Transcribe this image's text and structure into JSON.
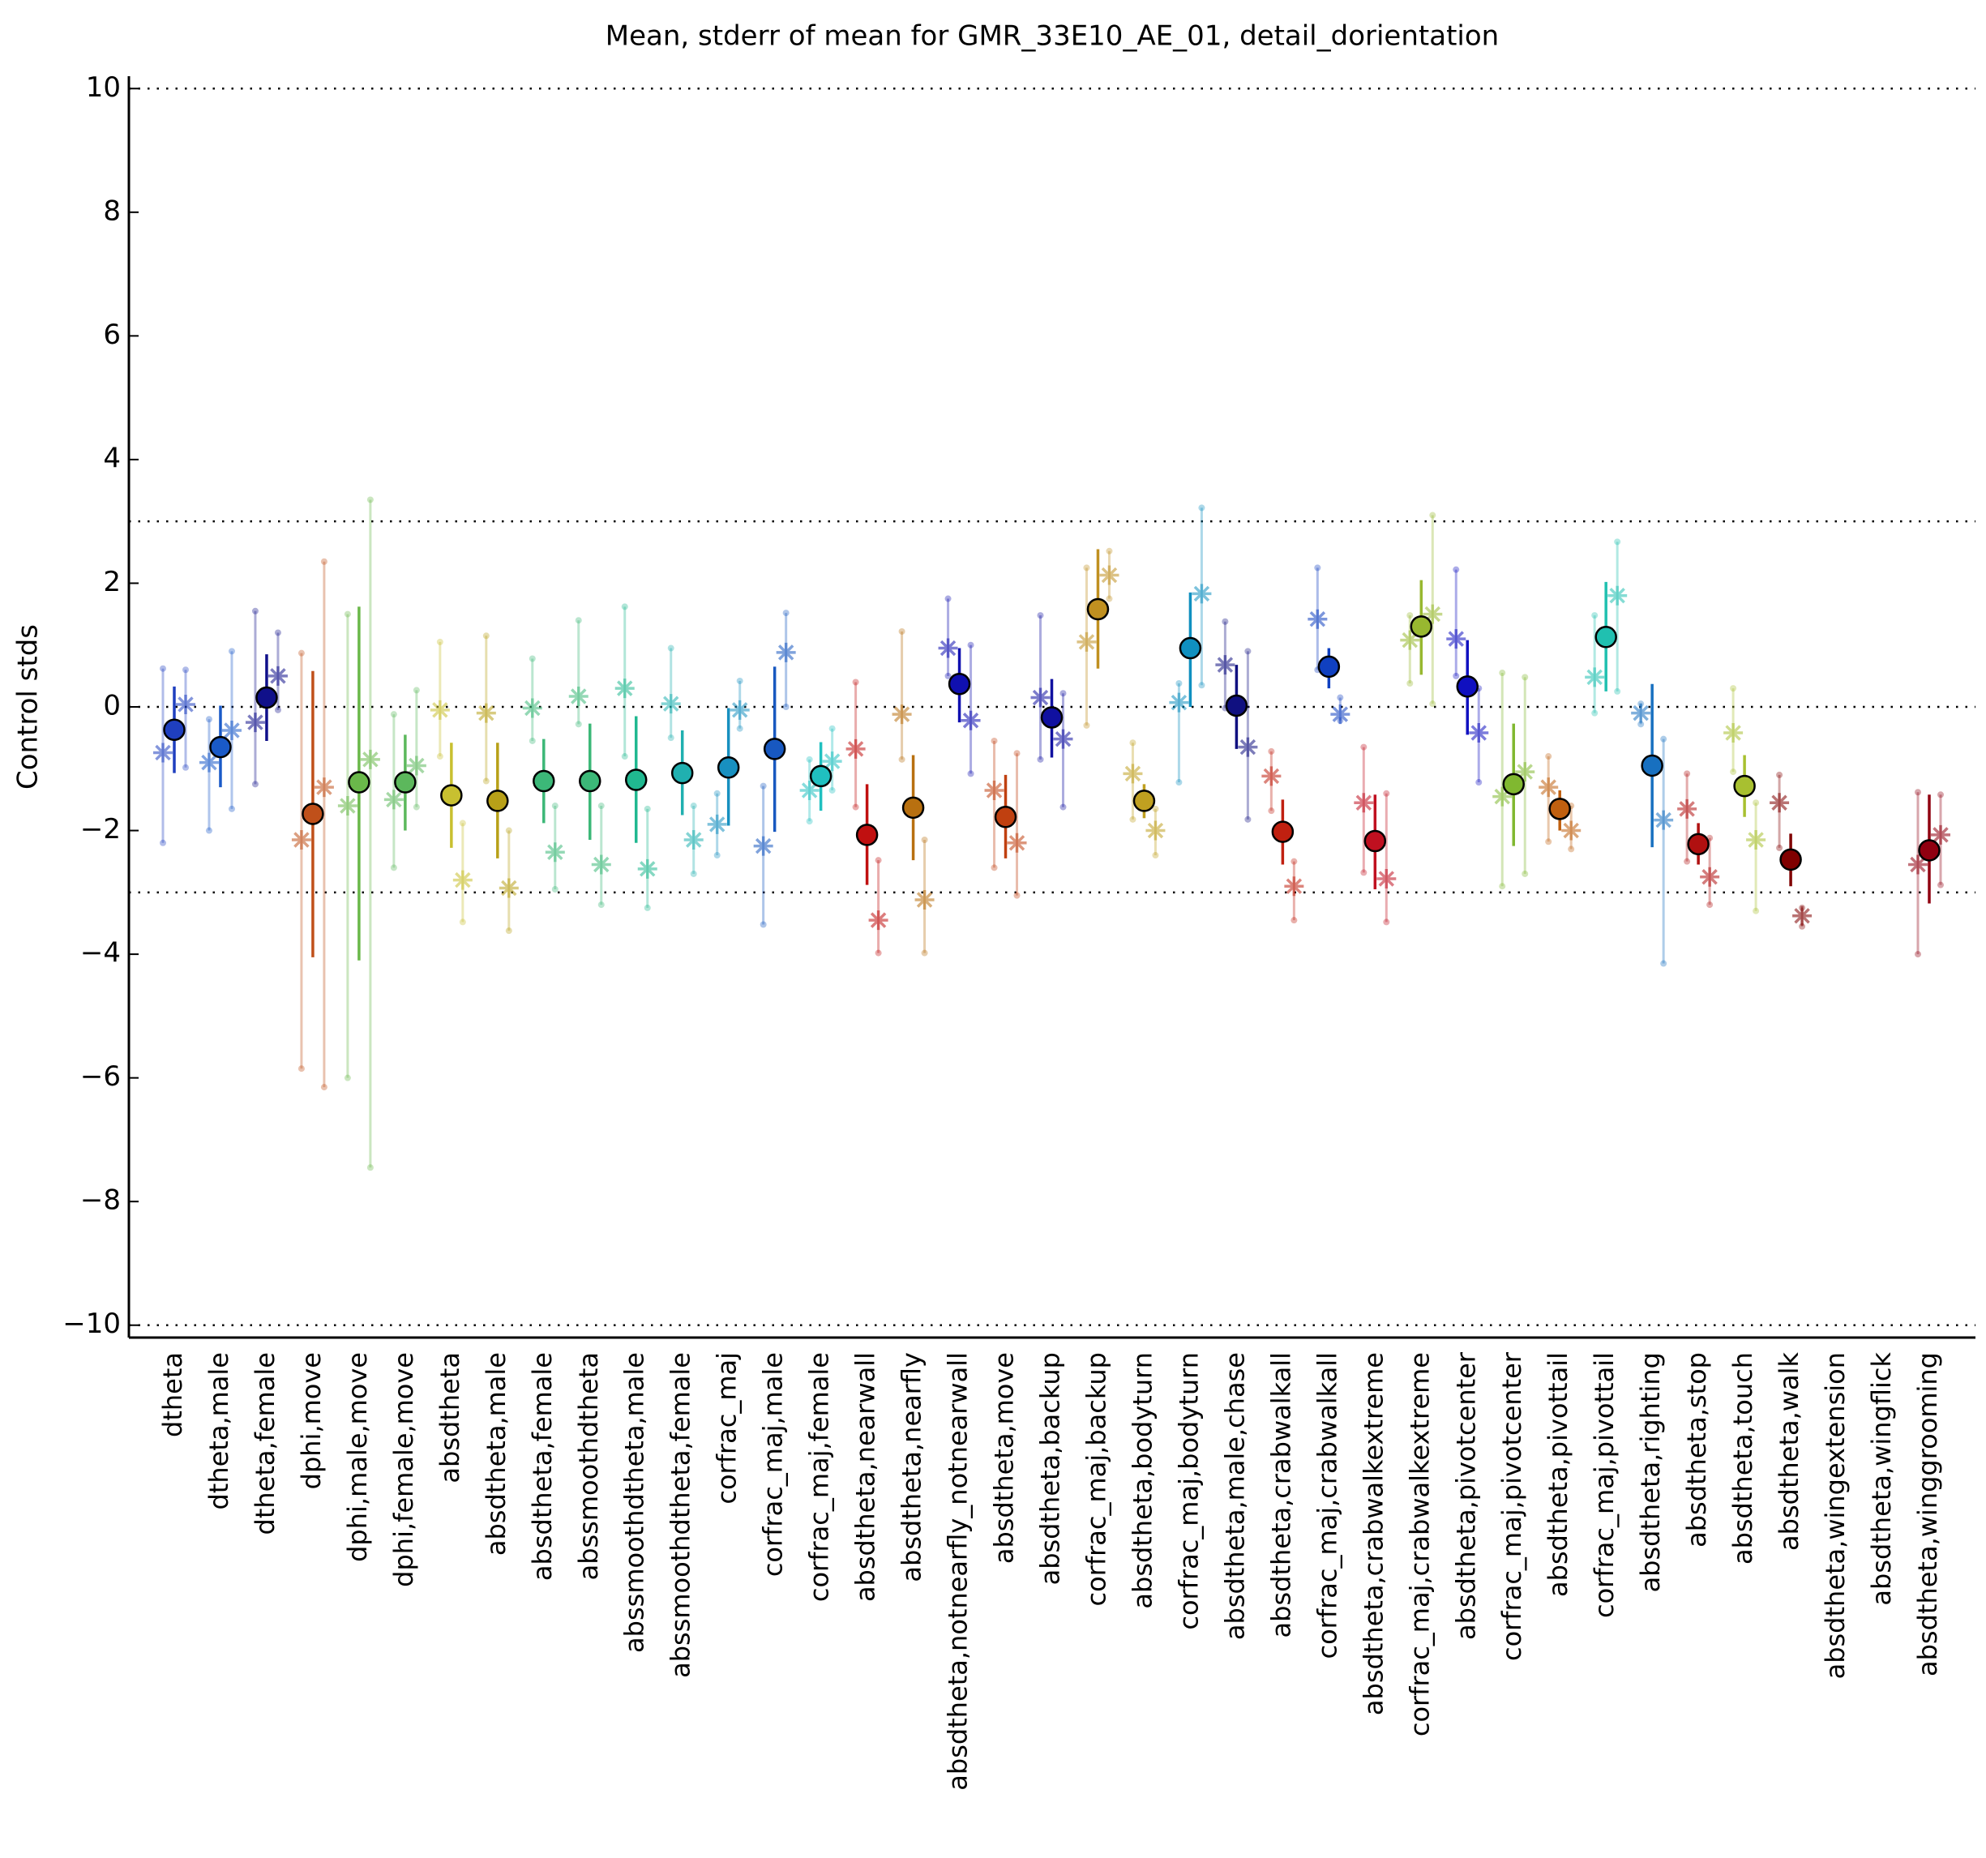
{
  "chart_data": {
    "type": "errorbar",
    "title": "Mean, stderr of mean for GMR_33E10_AE_01, detail_dorientation",
    "ylabel": "Control stds",
    "ylim": [
      -10.2,
      10.2
    ],
    "yticks": [
      {
        "value": -10,
        "label": "−10"
      },
      {
        "value": -8,
        "label": "−8"
      },
      {
        "value": -6,
        "label": "−6"
      },
      {
        "value": -4,
        "label": "−4"
      },
      {
        "value": -2,
        "label": "−2"
      },
      0,
      2,
      4,
      6,
      8,
      10
    ],
    "reference_lines": [
      10,
      3,
      0,
      -3,
      -10
    ],
    "categories": [
      "dtheta",
      "dtheta,male",
      "dtheta,female",
      "dphi,move",
      "dphi,male,move",
      "dphi,female,move",
      "absdtheta",
      "absdtheta,male",
      "absdtheta,female",
      "abssmoothdtheta",
      "abssmoothdtheta,male",
      "abssmoothdtheta,female",
      "corfrac_maj",
      "corfrac_maj,male",
      "corfrac_maj,female",
      "absdtheta,nearwall",
      "absdtheta,nearfly",
      "absdtheta,notnearfly_notnearwall",
      "absdtheta,move",
      "absdtheta,backup",
      "corfrac_maj,backup",
      "absdtheta,bodyturn",
      "corfrac_maj,bodyturn",
      "absdtheta,male,chase",
      "absdtheta,crabwalkall",
      "corfrac_maj,crabwalkall",
      "absdtheta,crabwalkextreme",
      "corfrac_maj,crabwalkextreme",
      "absdtheta,pivotcenter",
      "corfrac_maj,pivotcenter",
      "absdtheta,pivottail",
      "corfrac_maj,pivottail",
      "absdtheta,righting",
      "absdtheta,stop",
      "absdtheta,touch",
      "absdtheta,walk",
      "absdtheta,wingextension",
      "absdtheta,wingflick",
      "absdtheta,winggrooming"
    ],
    "colors": [
      "#1f3fbf",
      "#1a5ac8",
      "#10108a",
      "#c0501a",
      "#6ab84a",
      "#5cb85c",
      "#c8c030",
      "#b8a018",
      "#3cb878",
      "#3cb878",
      "#20b890",
      "#20b0b0",
      "#1890c0",
      "#1858c0",
      "#20c0c0",
      "#c01010",
      "#b87010",
      "#1010b0",
      "#c04010",
      "#1010a0",
      "#c09020",
      "#c0a020",
      "#1090c0",
      "#101080",
      "#c02010",
      "#1040c0",
      "#c01020",
      "#98b830",
      "#1010c0",
      "#80b830",
      "#c06010",
      "#20c0b0",
      "#1870c0",
      "#b01010",
      "#a8c030",
      "#800000",
      "#999999",
      "#999999",
      "#900010"
    ],
    "values": [
      -0.37,
      -0.65,
      0.15,
      -1.73,
      -1.22,
      -1.22,
      -1.43,
      -1.52,
      -1.2,
      -1.2,
      -1.18,
      -1.07,
      -0.98,
      -0.68,
      -1.12,
      -2.07,
      -1.63,
      0.37,
      -1.78,
      -0.17,
      1.58,
      -1.52,
      0.95,
      0.02,
      -2.02,
      0.65,
      -2.17,
      1.3,
      0.33,
      -1.25,
      -1.65,
      1.13,
      -0.95,
      -2.22,
      -1.28,
      -2.47,
      null,
      null,
      -2.32
    ],
    "lows": [
      -1.07,
      -1.3,
      -0.55,
      -4.05,
      -4.1,
      -2.0,
      -2.28,
      -2.45,
      -1.88,
      -2.15,
      -2.2,
      -1.75,
      -1.92,
      -2.02,
      -1.68,
      -2.88,
      -2.48,
      -0.25,
      -2.45,
      -0.82,
      0.62,
      -1.8,
      0.0,
      -0.68,
      -2.55,
      0.3,
      -2.95,
      0.52,
      -0.45,
      -2.25,
      -2.0,
      0.25,
      -2.27,
      -2.55,
      -1.78,
      -2.9,
      null,
      null,
      -3.18
    ],
    "highs": [
      0.33,
      0.02,
      0.85,
      0.58,
      1.62,
      -0.45,
      -0.58,
      -0.58,
      -0.52,
      -0.27,
      -0.15,
      -0.38,
      -0.02,
      0.65,
      -0.57,
      -1.25,
      -0.78,
      0.95,
      -1.1,
      0.45,
      2.55,
      -1.25,
      1.85,
      0.68,
      -1.5,
      0.95,
      -1.42,
      2.05,
      1.08,
      -0.27,
      -1.35,
      2.02,
      0.37,
      -1.88,
      -0.78,
      -2.05,
      null,
      null,
      -1.42
    ],
    "left_values": [
      -0.74,
      -0.9,
      -0.25,
      -2.15,
      -1.6,
      -1.5,
      -0.05,
      -0.1,
      -0.02,
      0.17,
      0.3,
      0.05,
      -1.9,
      -2.25,
      -1.35,
      -0.68,
      -0.12,
      0.95,
      -1.35,
      0.15,
      1.05,
      -1.08,
      0.07,
      0.68,
      -1.12,
      1.42,
      -1.55,
      1.08,
      1.1,
      -1.45,
      -1.3,
      0.48,
      -0.1,
      -1.65,
      -0.42,
      -1.55,
      null,
      null,
      -2.55
    ],
    "left_lows": [
      -2.2,
      -2.0,
      -1.25,
      -5.85,
      -6.0,
      -2.6,
      -0.8,
      -1.2,
      -0.55,
      -0.28,
      -0.8,
      -0.5,
      -2.4,
      -3.52,
      -1.85,
      -1.62,
      -0.85,
      0.5,
      -2.6,
      -0.85,
      -0.3,
      -1.82,
      -1.22,
      -0.02,
      -1.68,
      0.6,
      -2.68,
      0.38,
      0.5,
      -2.9,
      -2.18,
      -0.1,
      -0.28,
      -2.5,
      -1.05,
      -2.28,
      null,
      null,
      -4.0
    ],
    "left_highs": [
      0.62,
      -0.2,
      1.55,
      0.87,
      1.5,
      -0.12,
      1.05,
      1.15,
      0.78,
      1.4,
      1.62,
      0.95,
      -1.4,
      -1.28,
      -0.85,
      0.4,
      1.22,
      1.75,
      -0.55,
      1.48,
      2.25,
      -0.58,
      0.38,
      1.38,
      -0.72,
      2.25,
      -0.65,
      1.48,
      2.22,
      0.55,
      -0.8,
      1.48,
      0.05,
      -1.08,
      0.3,
      -1.1,
      null,
      null,
      -1.38
    ],
    "right_values": [
      0.04,
      -0.38,
      0.5,
      -1.3,
      -0.85,
      -0.95,
      -2.8,
      -2.93,
      -2.35,
      -2.55,
      -2.62,
      -2.15,
      -0.05,
      0.88,
      -0.88,
      -3.45,
      -3.12,
      -0.22,
      -2.2,
      -0.52,
      2.13,
      -2.0,
      1.83,
      -0.65,
      -2.9,
      -0.12,
      -2.78,
      1.5,
      -0.42,
      -1.05,
      -2.0,
      1.8,
      -1.83,
      -2.75,
      -2.15,
      -3.38,
      null,
      null,
      -2.07
    ],
    "right_lows": [
      -0.98,
      -1.65,
      -0.05,
      -6.15,
      -7.45,
      -1.62,
      -3.48,
      -3.62,
      -2.95,
      -3.2,
      -3.25,
      -2.7,
      -0.35,
      0.0,
      -1.35,
      -3.98,
      -3.98,
      -1.08,
      -3.05,
      -1.62,
      1.75,
      -2.4,
      0.35,
      -1.82,
      -3.45,
      -0.22,
      -3.48,
      0.05,
      -1.22,
      -2.7,
      -2.3,
      0.25,
      -4.15,
      -3.2,
      -3.3,
      -3.55,
      null,
      null,
      -2.88
    ],
    "right_highs": [
      0.6,
      0.9,
      1.2,
      2.35,
      3.35,
      0.27,
      -1.88,
      -2.0,
      -1.6,
      -1.6,
      -1.65,
      -1.6,
      0.42,
      1.52,
      -0.35,
      -2.48,
      -2.15,
      1.0,
      -0.75,
      0.22,
      2.52,
      -1.65,
      3.22,
      0.9,
      -2.5,
      0.15,
      -1.4,
      3.1,
      0.3,
      0.48,
      -1.6,
      2.67,
      -0.52,
      -2.12,
      -1.55,
      -3.25,
      null,
      null,
      -1.42
    ]
  }
}
